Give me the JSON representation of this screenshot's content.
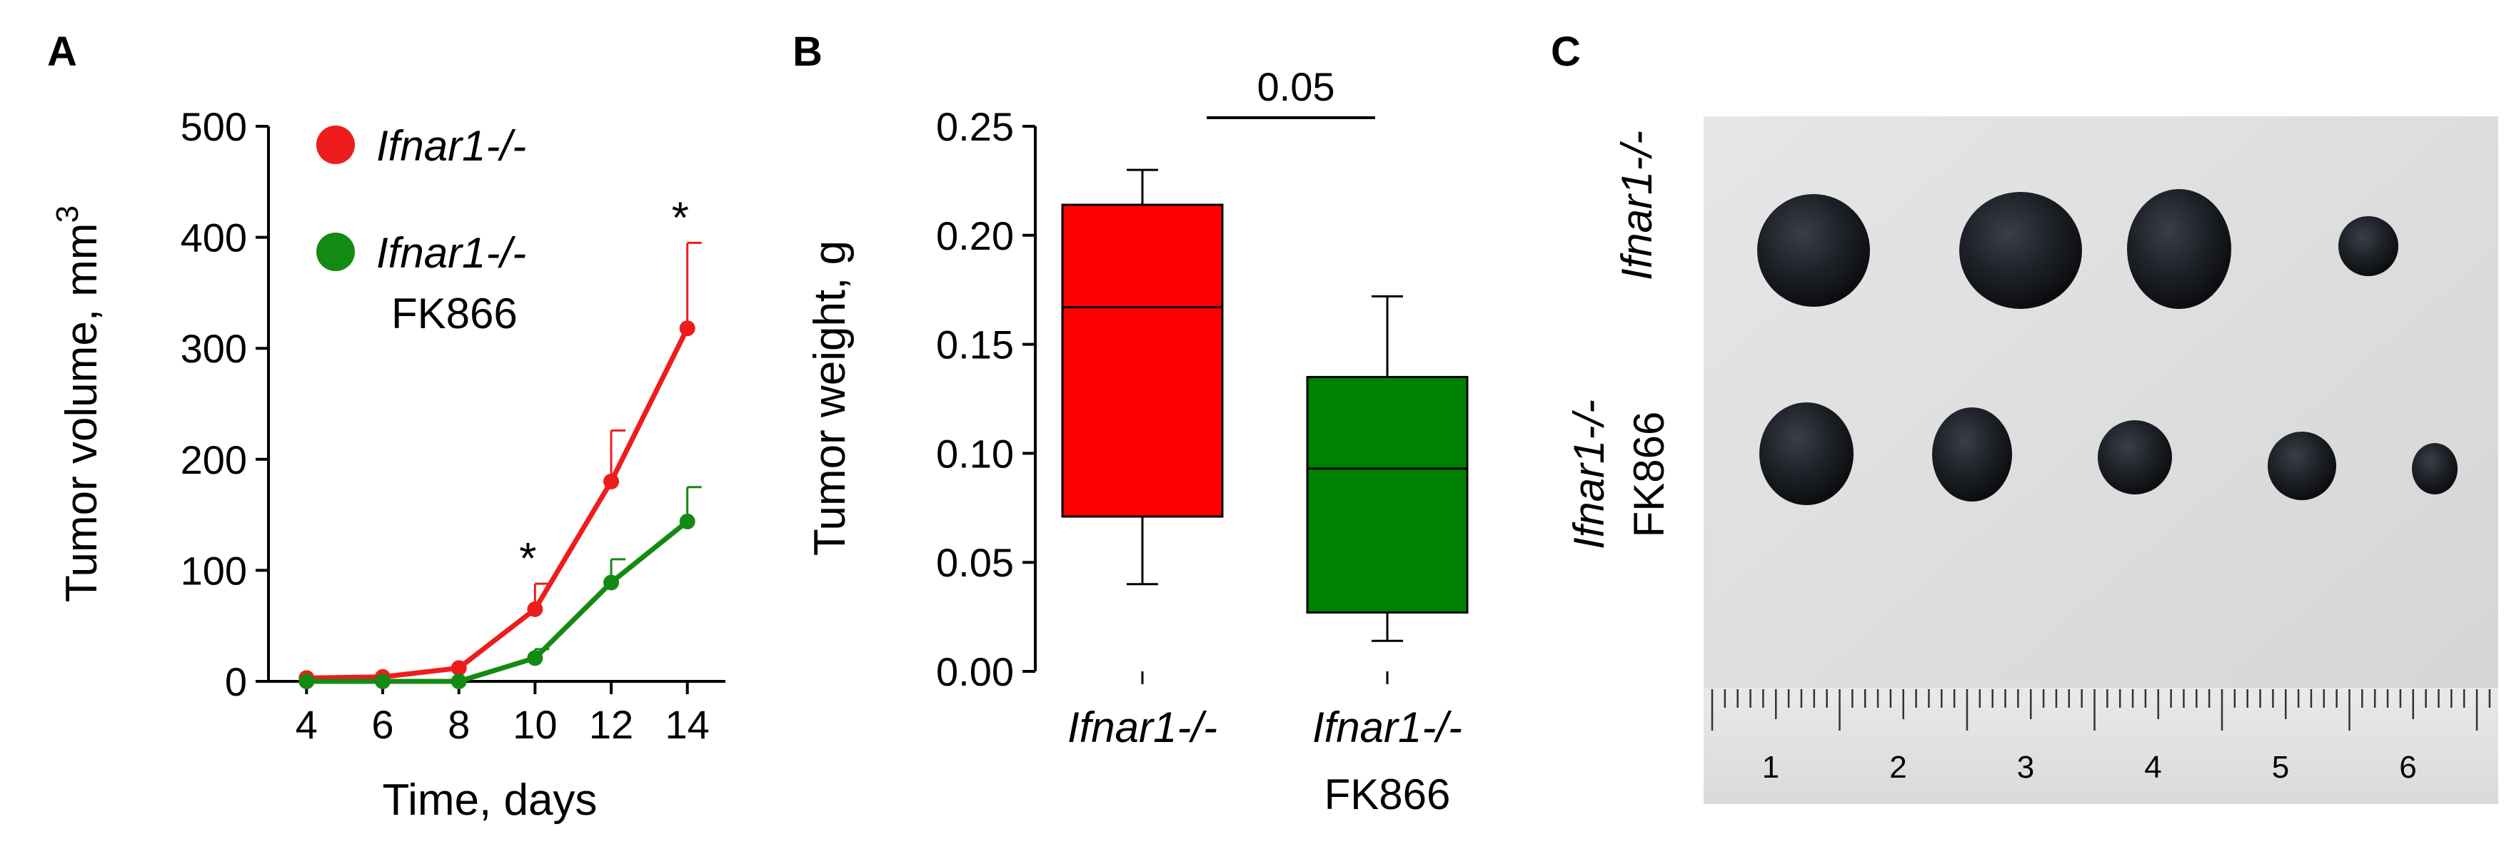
{
  "figure": {
    "panel_labels": [
      "A",
      "B",
      "C"
    ]
  },
  "chart_data": [
    {
      "panel": "A",
      "type": "line",
      "title": "",
      "xlabel": "Time, days",
      "ylabel": "Tumor volume, mm",
      "ylabel_superscript": "3",
      "x": [
        4,
        6,
        8,
        10,
        12,
        14
      ],
      "xticks": [
        4,
        6,
        8,
        10,
        12,
        14
      ],
      "xlim": [
        3,
        15
      ],
      "ylim": [
        0,
        500
      ],
      "yticks": [
        0,
        100,
        200,
        300,
        400,
        500
      ],
      "grid": false,
      "legend_position": "top-left",
      "series": [
        {
          "name": "Ifnar1-/-",
          "name_line2": "",
          "color": "#ee1c1c",
          "values": [
            3,
            4,
            12,
            65,
            180,
            318
          ],
          "error_upper": [
            3,
            4,
            12,
            88,
            226,
            395
          ]
        },
        {
          "name": "Ifnar1-/-",
          "name_line2": "FK866",
          "color": "#138a13",
          "values": [
            0,
            0,
            0,
            21,
            89,
            144
          ],
          "error_upper": [
            0,
            0,
            0,
            29,
            110,
            175
          ]
        }
      ],
      "annotations": [
        {
          "x": 10,
          "y": 88,
          "text": "*"
        },
        {
          "x": 14,
          "y": 395,
          "text": "*"
        }
      ]
    },
    {
      "panel": "B",
      "type": "box",
      "title": "",
      "xlabel": "",
      "ylabel": "Tumor weight, g",
      "ylim": [
        0,
        0.25
      ],
      "yticks": [
        0.0,
        0.05,
        0.1,
        0.15,
        0.2,
        0.25
      ],
      "ytick_labels": [
        "0.00",
        "0.05",
        "0.10",
        "0.15",
        "0.20",
        "0.25"
      ],
      "grid": false,
      "groups": [
        {
          "label": "Ifnar1-/-",
          "label_line2": "",
          "color": "#ff0000",
          "min": 0.04,
          "q1": 0.071,
          "median": 0.167,
          "q3": 0.214,
          "max": 0.23
        },
        {
          "label": "Ifnar1-/-",
          "label_line2": "FK866",
          "color": "#008000",
          "min": 0.014,
          "q1": 0.027,
          "median": 0.093,
          "q3": 0.135,
          "max": 0.172
        }
      ],
      "comparison": {
        "text": "0.05"
      }
    }
  ],
  "photo": {
    "panel": "C",
    "row_labels": [
      {
        "line1": "Ifnar1-/-",
        "line2": ""
      },
      {
        "line1": "Ifnar1-/-",
        "line2": "FK866"
      }
    ],
    "ruler_numbers": [
      "1",
      "2",
      "3",
      "4",
      "5",
      "6"
    ]
  }
}
